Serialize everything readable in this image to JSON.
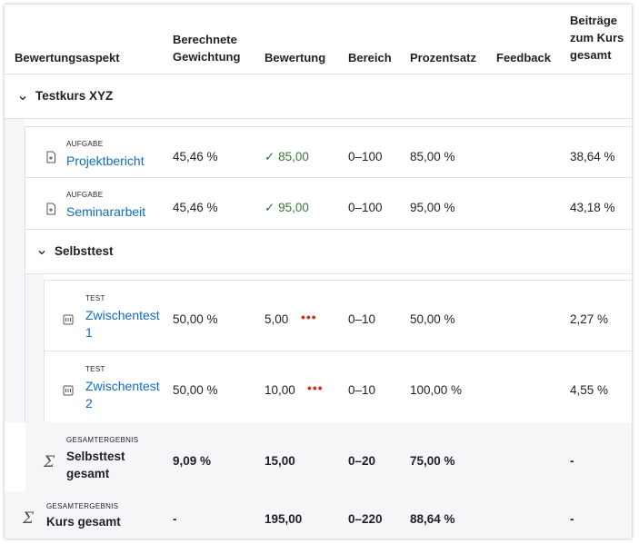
{
  "table": {
    "headers": {
      "aspect": "Bewertungsaspekt",
      "weight_line1": "Berechnete",
      "weight_line2": "Gewichtung",
      "grade": "Bewertung",
      "range": "Bereich",
      "percent": "Prozentsatz",
      "feedback": "Feedback",
      "contrib_line1": "Beiträge",
      "contrib_line2": "zum Kurs",
      "contrib_line3": "gesamt"
    },
    "course_category": "Testkurs XYZ",
    "items": [
      {
        "type": "AUFGABE",
        "name": "Projektbericht",
        "weight": "45,46 %",
        "grade": "85,00",
        "range": "0–100",
        "percent": "85,00 %",
        "contribution": "38,64 %"
      },
      {
        "type": "AUFGABE",
        "name": "Seminararbeit",
        "weight": "45,46 %",
        "grade": "95,00",
        "range": "0–100",
        "percent": "95,00 %",
        "contribution": "43,18 %"
      }
    ],
    "subcategory": "Selbsttest",
    "quizzes": [
      {
        "type": "TEST",
        "name_line1": "Zwischentest",
        "name_line2": "1",
        "weight": "50,00 %",
        "grade": "5,00",
        "menu": "•••",
        "range": "0–10",
        "percent": "50,00 %",
        "contribution": "2,27 %"
      },
      {
        "type": "TEST",
        "name_line1": "Zwischentest",
        "name_line2": "2",
        "weight": "50,00 %",
        "grade": "10,00",
        "menu": "•••",
        "range": "0–10",
        "percent": "100,00 %",
        "contribution": "4,55 %"
      }
    ],
    "sub_total": {
      "type": "GESAMTERGEBNIS",
      "name_line1": "Selbsttest",
      "name_line2": "gesamt",
      "weight": "9,09 %",
      "grade": "15,00",
      "range": "0–20",
      "percent": "75,00 %",
      "contribution": "-"
    },
    "course_total": {
      "type": "GESAMTERGEBNIS",
      "name": "Kurs gesamt",
      "weight": "-",
      "grade": "195,00",
      "range": "0–220",
      "percent": "88,64 %",
      "contribution": "-"
    },
    "sigma_symbol": "Σ",
    "colors": {
      "link": "#0f6cbf",
      "check": "#357a32",
      "menu_dots": "#ca3120",
      "shade": "#f5f6f8",
      "border": "#dee2e6"
    }
  }
}
